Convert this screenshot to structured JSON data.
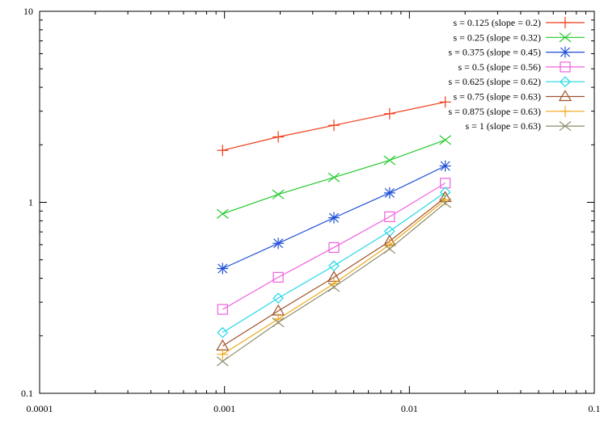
{
  "chart_data": {
    "type": "line",
    "xscale": "log",
    "yscale": "log",
    "xlim": [
      0.0001,
      0.1
    ],
    "ylim": [
      0.1,
      10
    ],
    "grid": false,
    "legend_position": "top-right",
    "x_ticks": [
      {
        "value": 0.0001,
        "label": "0.0001"
      },
      {
        "value": 0.001,
        "label": "0.001"
      },
      {
        "value": 0.01,
        "label": "0.01"
      },
      {
        "value": 0.1,
        "label": "0.1"
      }
    ],
    "y_ticks": [
      {
        "value": 0.1,
        "label": "0.1"
      },
      {
        "value": 1,
        "label": "1"
      },
      {
        "value": 10,
        "label": "10"
      }
    ],
    "x": [
      0.0009766,
      0.001953,
      0.003906,
      0.007813,
      0.01563
    ],
    "series": [
      {
        "name": "s = 0.125 (slope = 0.2)",
        "color": "#f03c18",
        "marker": "plus",
        "values": [
          1.87,
          2.2,
          2.53,
          2.91,
          3.35
        ]
      },
      {
        "name": "s = 0.25 (slope = 0.32)",
        "color": "#22c92a",
        "marker": "cross",
        "values": [
          0.87,
          1.1,
          1.35,
          1.66,
          2.12
        ]
      },
      {
        "name": "s = 0.375 (slope = 0.45)",
        "color": "#1f4fd6",
        "marker": "star",
        "values": [
          0.45,
          0.61,
          0.83,
          1.12,
          1.55
        ]
      },
      {
        "name": "s = 0.5 (slope = 0.56)",
        "color": "#f060e0",
        "marker": "square",
        "values": [
          0.275,
          0.405,
          0.58,
          0.84,
          1.26
        ]
      },
      {
        "name": "s = 0.625 (slope = 0.62)",
        "color": "#22d8e8",
        "marker": "diamond",
        "values": [
          0.208,
          0.315,
          0.465,
          0.705,
          1.13
        ]
      },
      {
        "name": "s = 0.75 (slope = 0.63)",
        "color": "#a0522d",
        "marker": "triangle",
        "values": [
          0.177,
          0.27,
          0.405,
          0.625,
          1.06
        ]
      },
      {
        "name": "s = 0.875 (slope = 0.63)",
        "color": "#f0a818",
        "marker": "plus",
        "values": [
          0.16,
          0.245,
          0.375,
          0.6,
          1.03
        ]
      },
      {
        "name": "s = 1 (slope = 0.63)",
        "color": "#8c8c6e",
        "marker": "cross",
        "values": [
          0.147,
          0.235,
          0.36,
          0.57,
          0.99
        ]
      }
    ]
  }
}
